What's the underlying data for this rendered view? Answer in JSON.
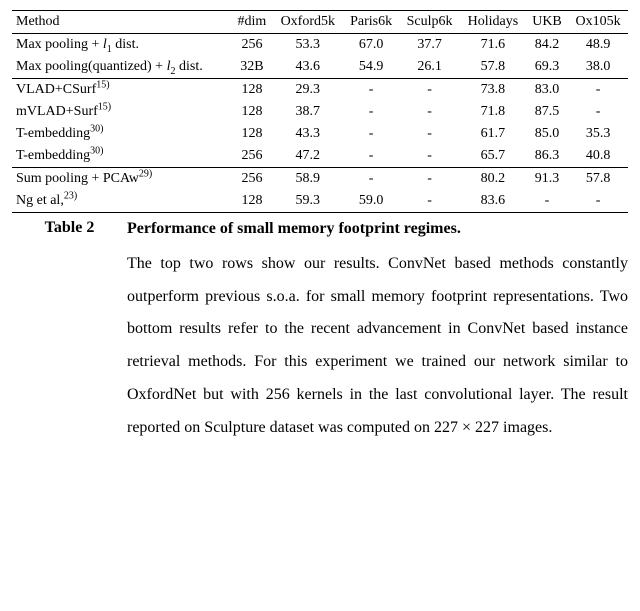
{
  "table": {
    "headers": [
      "Method",
      "#dim",
      "Oxford5k",
      "Paris6k",
      "Sculp6k",
      "Holidays",
      "UKB",
      "Ox105k"
    ],
    "groups": [
      {
        "rows": [
          {
            "method_html": "Max pooling + <span class='ital'>l</span><sub>1</sub> dist.",
            "cells": [
              "256",
              "53.3",
              {
                "v": "67.0",
                "b": true
              },
              {
                "v": "37.7",
                "b": true
              },
              "71.6",
              "84.2",
              "48.9"
            ]
          },
          {
            "method_html": "Max pooling(quantized) + <span class='ital'>l</span><sub>2</sub> dist.",
            "cells": [
              "32B",
              "43.6",
              "54.9",
              "26.1",
              "57.8",
              "69.3",
              "38.0"
            ]
          }
        ]
      },
      {
        "rows": [
          {
            "method_html": "VLAD+CSurf<sup>15)</sup>",
            "cells": [
              "128",
              "29.3",
              "-",
              "-",
              "73.8",
              "83.0",
              "-"
            ]
          },
          {
            "method_html": "mVLAD+Surf<sup>15)</sup>",
            "cells": [
              "128",
              "38.7",
              "-",
              "-",
              "71.8",
              "87.5",
              "-"
            ]
          },
          {
            "method_html": "T-embedding<sup>30)</sup>",
            "cells": [
              "128",
              "43.3",
              "-",
              "-",
              "61.7",
              "85.0",
              "35.3"
            ]
          },
          {
            "method_html": "T-embedding<sup>30)</sup>",
            "cells": [
              "256",
              "47.2",
              "-",
              "-",
              "65.7",
              "86.3",
              "40.8"
            ]
          }
        ]
      },
      {
        "rows": [
          {
            "method_html": "Sum pooling + PCAw<sup>29)</sup>",
            "cells": [
              "256",
              "58.9",
              "-",
              "-",
              "80.2",
              {
                "v": "91.3",
                "b": true
              },
              {
                "v": "57.8",
                "b": true
              }
            ]
          },
          {
            "method_html": "Ng et al,<sup>23)</sup>",
            "cells": [
              "128",
              {
                "v": "59.3",
                "b": true
              },
              "59.0",
              "-",
              {
                "v": "83.6",
                "b": true
              },
              "-",
              "-"
            ]
          }
        ]
      }
    ]
  },
  "caption": {
    "label": "Table 2",
    "title": "Performance of small memory footprint regimes.",
    "body": "The top two rows show our results. ConvNet based methods constantly outperform previous s.o.a. for small memory footprint representations. Two bottom results refer to the recent advancement in ConvNet based instance retrieval methods. For this experiment we trained our network similar to OxfordNet but with 256 kernels in the last convolutional layer. The result reported on Sculpture dataset was computed on 227 × 227 images."
  }
}
